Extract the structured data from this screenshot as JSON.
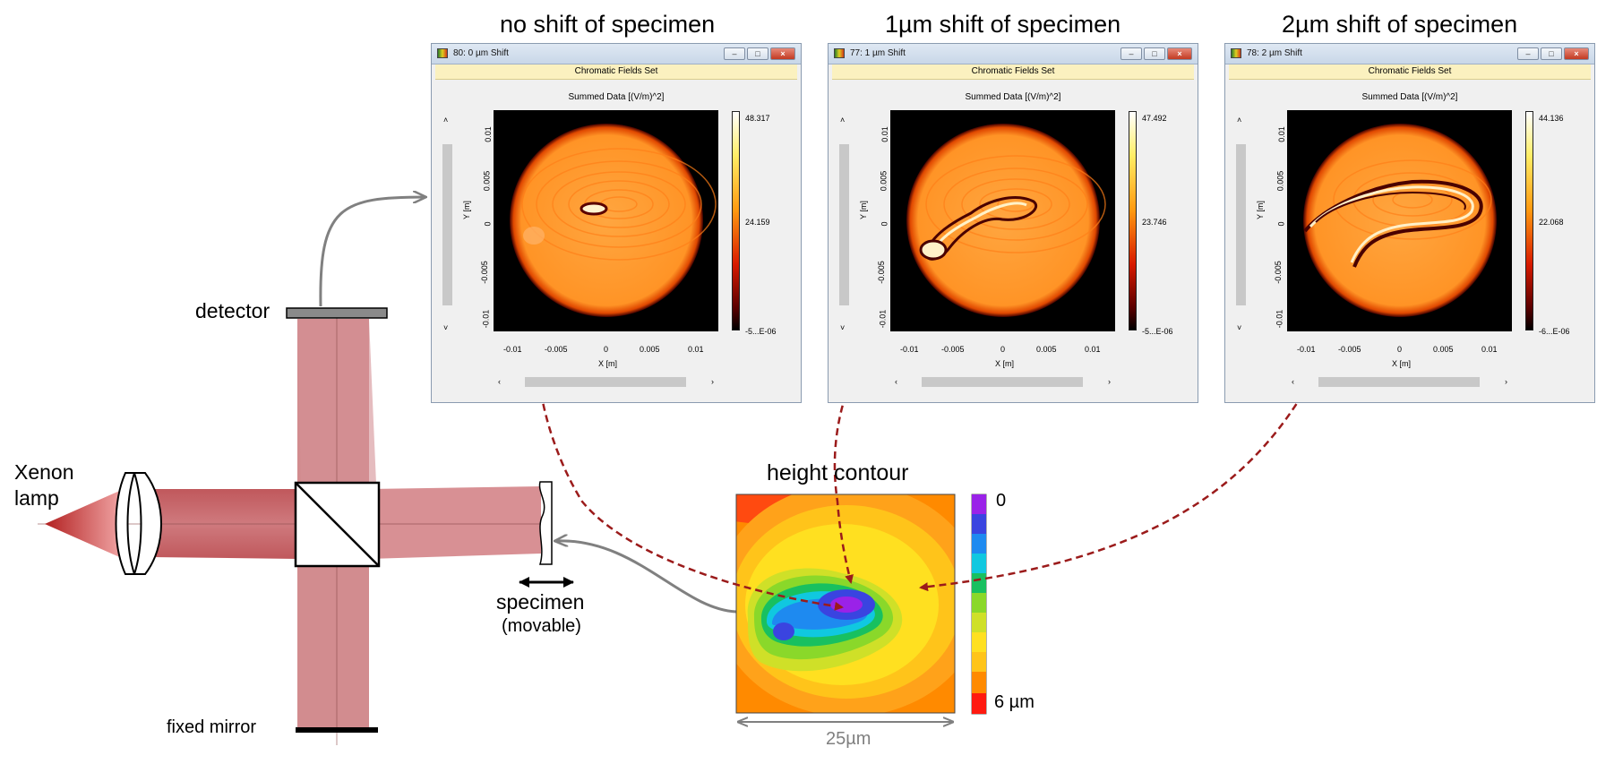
{
  "labels": {
    "xenon_lamp": [
      "Xenon",
      "lamp"
    ],
    "detector": "detector",
    "fixed_mirror": "fixed mirror",
    "specimen": "specimen",
    "specimen_sub": "(movable)",
    "height_contour": "height contour",
    "scale_top": "0",
    "scale_bottom": "6 µm",
    "width_label": "25µm"
  },
  "windows": [
    {
      "heading": "no shift of specimen",
      "title": "80: 0 µm Shift",
      "band": "Chromatic Fields Set",
      "summed": "Summed Data  [(V/m)^2]",
      "cmax": "48.317",
      "cmid": "24.159",
      "cmin": "-5...E-06"
    },
    {
      "heading": "1µm shift of specimen",
      "title": "77: 1 µm Shift",
      "band": "Chromatic Fields Set",
      "summed": "Summed Data  [(V/m)^2]",
      "cmax": "47.492",
      "cmid": "23.746",
      "cmin": "-5...E-06"
    },
    {
      "heading": "2µm shift of specimen",
      "title": "78: 2 µm Shift",
      "band": "Chromatic Fields Set",
      "summed": "Summed Data  [(V/m)^2]",
      "cmax": "44.136",
      "cmid": "22.068",
      "cmin": "-6...E-06"
    }
  ],
  "axis": {
    "x_label": "X [m]",
    "y_label": "Y [m]",
    "x_ticks": [
      "-0.01",
      "-0.005",
      "0",
      "0.005",
      "0.01"
    ],
    "y_ticks": [
      "0.01",
      "0.005",
      "0",
      "-0.005",
      "-0.01"
    ]
  },
  "colors": {
    "beam": "#c9686c",
    "arrow_red": "#9b1b1b",
    "arrow_gray": "#808080"
  }
}
